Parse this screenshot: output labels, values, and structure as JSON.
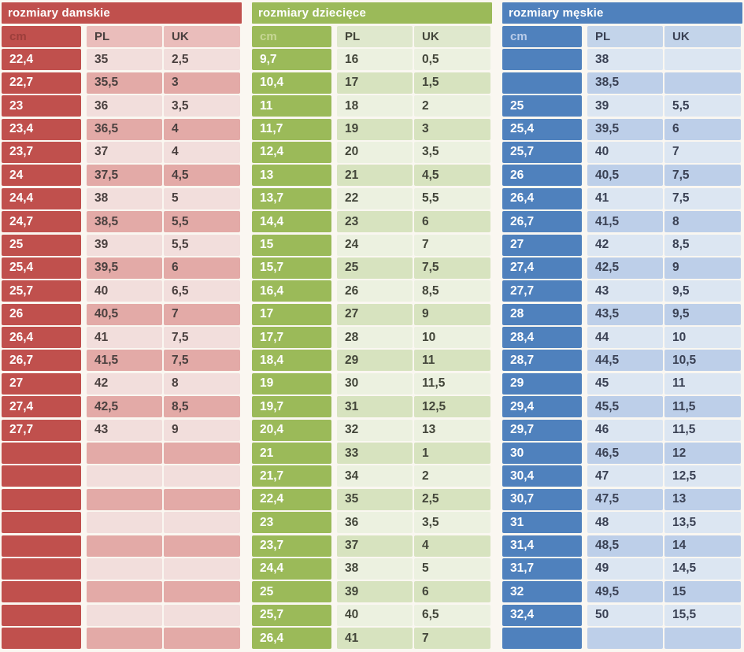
{
  "page": {
    "background": "#faf7f1",
    "description_labels": {
      "cm": "cm",
      "pl": "PL",
      "uk": "UK"
    }
  },
  "chart_data": [
    {
      "type": "table",
      "id": "damskie",
      "title": "rozmiary damskie",
      "columns": [
        "cm",
        "PL",
        "UK"
      ],
      "colors": {
        "accent": "#c0504d",
        "title_text": "#ffffff",
        "cm_text": "#ffffff",
        "cm_header_text": "#9c3e3b",
        "header_bg": "#eabdbb",
        "row_light": "#f2dedc",
        "row_dark": "#e3aaa7",
        "value_text": "#4a403f"
      },
      "rows": [
        [
          "22,4",
          "35",
          "2,5"
        ],
        [
          "22,7",
          "35,5",
          "3"
        ],
        [
          "23",
          "36",
          "3,5"
        ],
        [
          "23,4",
          "36,5",
          "4"
        ],
        [
          "23,7",
          "37",
          "4"
        ],
        [
          "24",
          "37,5",
          "4,5"
        ],
        [
          "24,4",
          "38",
          "5"
        ],
        [
          "24,7",
          "38,5",
          "5,5"
        ],
        [
          "25",
          "39",
          "5,5"
        ],
        [
          "25,4",
          "39,5",
          "6"
        ],
        [
          "25,7",
          "40",
          "6,5"
        ],
        [
          "26",
          "40,5",
          "7"
        ],
        [
          "26,4",
          "41",
          "7,5"
        ],
        [
          "26,7",
          "41,5",
          "7,5"
        ],
        [
          "27",
          "42",
          "8"
        ],
        [
          "27,4",
          "42,5",
          "8,5"
        ],
        [
          "27,7",
          "43",
          "9"
        ],
        [
          "",
          "",
          ""
        ],
        [
          "",
          "",
          ""
        ],
        [
          "",
          "",
          ""
        ],
        [
          "",
          "",
          ""
        ],
        [
          "",
          "",
          ""
        ],
        [
          "",
          "",
          ""
        ],
        [
          "",
          "",
          ""
        ],
        [
          "",
          "",
          ""
        ],
        [
          "",
          "",
          ""
        ]
      ]
    },
    {
      "type": "table",
      "id": "dzieciece",
      "title": "rozmiary dziecięce",
      "columns": [
        "cm",
        "PL",
        "UK"
      ],
      "colors": {
        "accent": "#9bba59",
        "title_text": "#ffffff",
        "cm_text": "#ffffff",
        "cm_header_text": "#c7d795",
        "header_bg": "#dfe8cd",
        "row_light": "#ecf1e0",
        "row_dark": "#d7e3bf",
        "value_text": "#43463a"
      },
      "rows": [
        [
          "9,7",
          "16",
          "0,5"
        ],
        [
          "10,4",
          "17",
          "1,5"
        ],
        [
          "11",
          "18",
          "2"
        ],
        [
          "11,7",
          "19",
          "3"
        ],
        [
          "12,4",
          "20",
          "3,5"
        ],
        [
          "13",
          "21",
          "4,5"
        ],
        [
          "13,7",
          "22",
          "5,5"
        ],
        [
          "14,4",
          "23",
          "6"
        ],
        [
          "15",
          "24",
          "7"
        ],
        [
          "15,7",
          "25",
          "7,5"
        ],
        [
          "16,4",
          "26",
          "8,5"
        ],
        [
          "17",
          "27",
          "9"
        ],
        [
          "17,7",
          "28",
          "10"
        ],
        [
          "18,4",
          "29",
          "11"
        ],
        [
          "19",
          "30",
          "11,5"
        ],
        [
          "19,7",
          "31",
          "12,5"
        ],
        [
          "20,4",
          "32",
          "13"
        ],
        [
          "21",
          "33",
          "1"
        ],
        [
          "21,7",
          "34",
          "2"
        ],
        [
          "22,4",
          "35",
          "2,5"
        ],
        [
          "23",
          "36",
          "3,5"
        ],
        [
          "23,7",
          "37",
          "4"
        ],
        [
          "24,4",
          "38",
          "5"
        ],
        [
          "25",
          "39",
          "6"
        ],
        [
          "25,7",
          "40",
          "6,5"
        ],
        [
          "26,4",
          "41",
          "7"
        ]
      ]
    },
    {
      "type": "table",
      "id": "meskie",
      "title": "rozmiary męskie",
      "columns": [
        "cm",
        "PL",
        "UK"
      ],
      "colors": {
        "accent": "#4f81bd",
        "title_text": "#ffffff",
        "cm_text": "#ffffff",
        "cm_header_text": "#b9cce9",
        "header_bg": "#c3d4ea",
        "row_light": "#dce6f2",
        "row_dark": "#bdcfe9",
        "value_text": "#3a4154"
      },
      "rows": [
        [
          "",
          "38",
          ""
        ],
        [
          "",
          "38,5",
          ""
        ],
        [
          "25",
          "39",
          "5,5"
        ],
        [
          "25,4",
          "39,5",
          "6"
        ],
        [
          "25,7",
          "40",
          "7"
        ],
        [
          "26",
          "40,5",
          "7,5"
        ],
        [
          "26,4",
          "41",
          "7,5"
        ],
        [
          "26,7",
          "41,5",
          "8"
        ],
        [
          "27",
          "42",
          "8,5"
        ],
        [
          "27,4",
          "42,5",
          "9"
        ],
        [
          "27,7",
          "43",
          "9,5"
        ],
        [
          "28",
          "43,5",
          "9,5"
        ],
        [
          "28,4",
          "44",
          "10"
        ],
        [
          "28,7",
          "44,5",
          "10,5"
        ],
        [
          "29",
          "45",
          "11"
        ],
        [
          "29,4",
          "45,5",
          "11,5"
        ],
        [
          "29,7",
          "46",
          "11,5"
        ],
        [
          "30",
          "46,5",
          "12"
        ],
        [
          "30,4",
          "47",
          "12,5"
        ],
        [
          "30,7",
          "47,5",
          "13"
        ],
        [
          "31",
          "48",
          "13,5"
        ],
        [
          "31,4",
          "48,5",
          "14"
        ],
        [
          "31,7",
          "49",
          "14,5"
        ],
        [
          "32",
          "49,5",
          "15"
        ],
        [
          "32,4",
          "50",
          "15,5"
        ],
        [
          "",
          "",
          ""
        ]
      ]
    }
  ]
}
